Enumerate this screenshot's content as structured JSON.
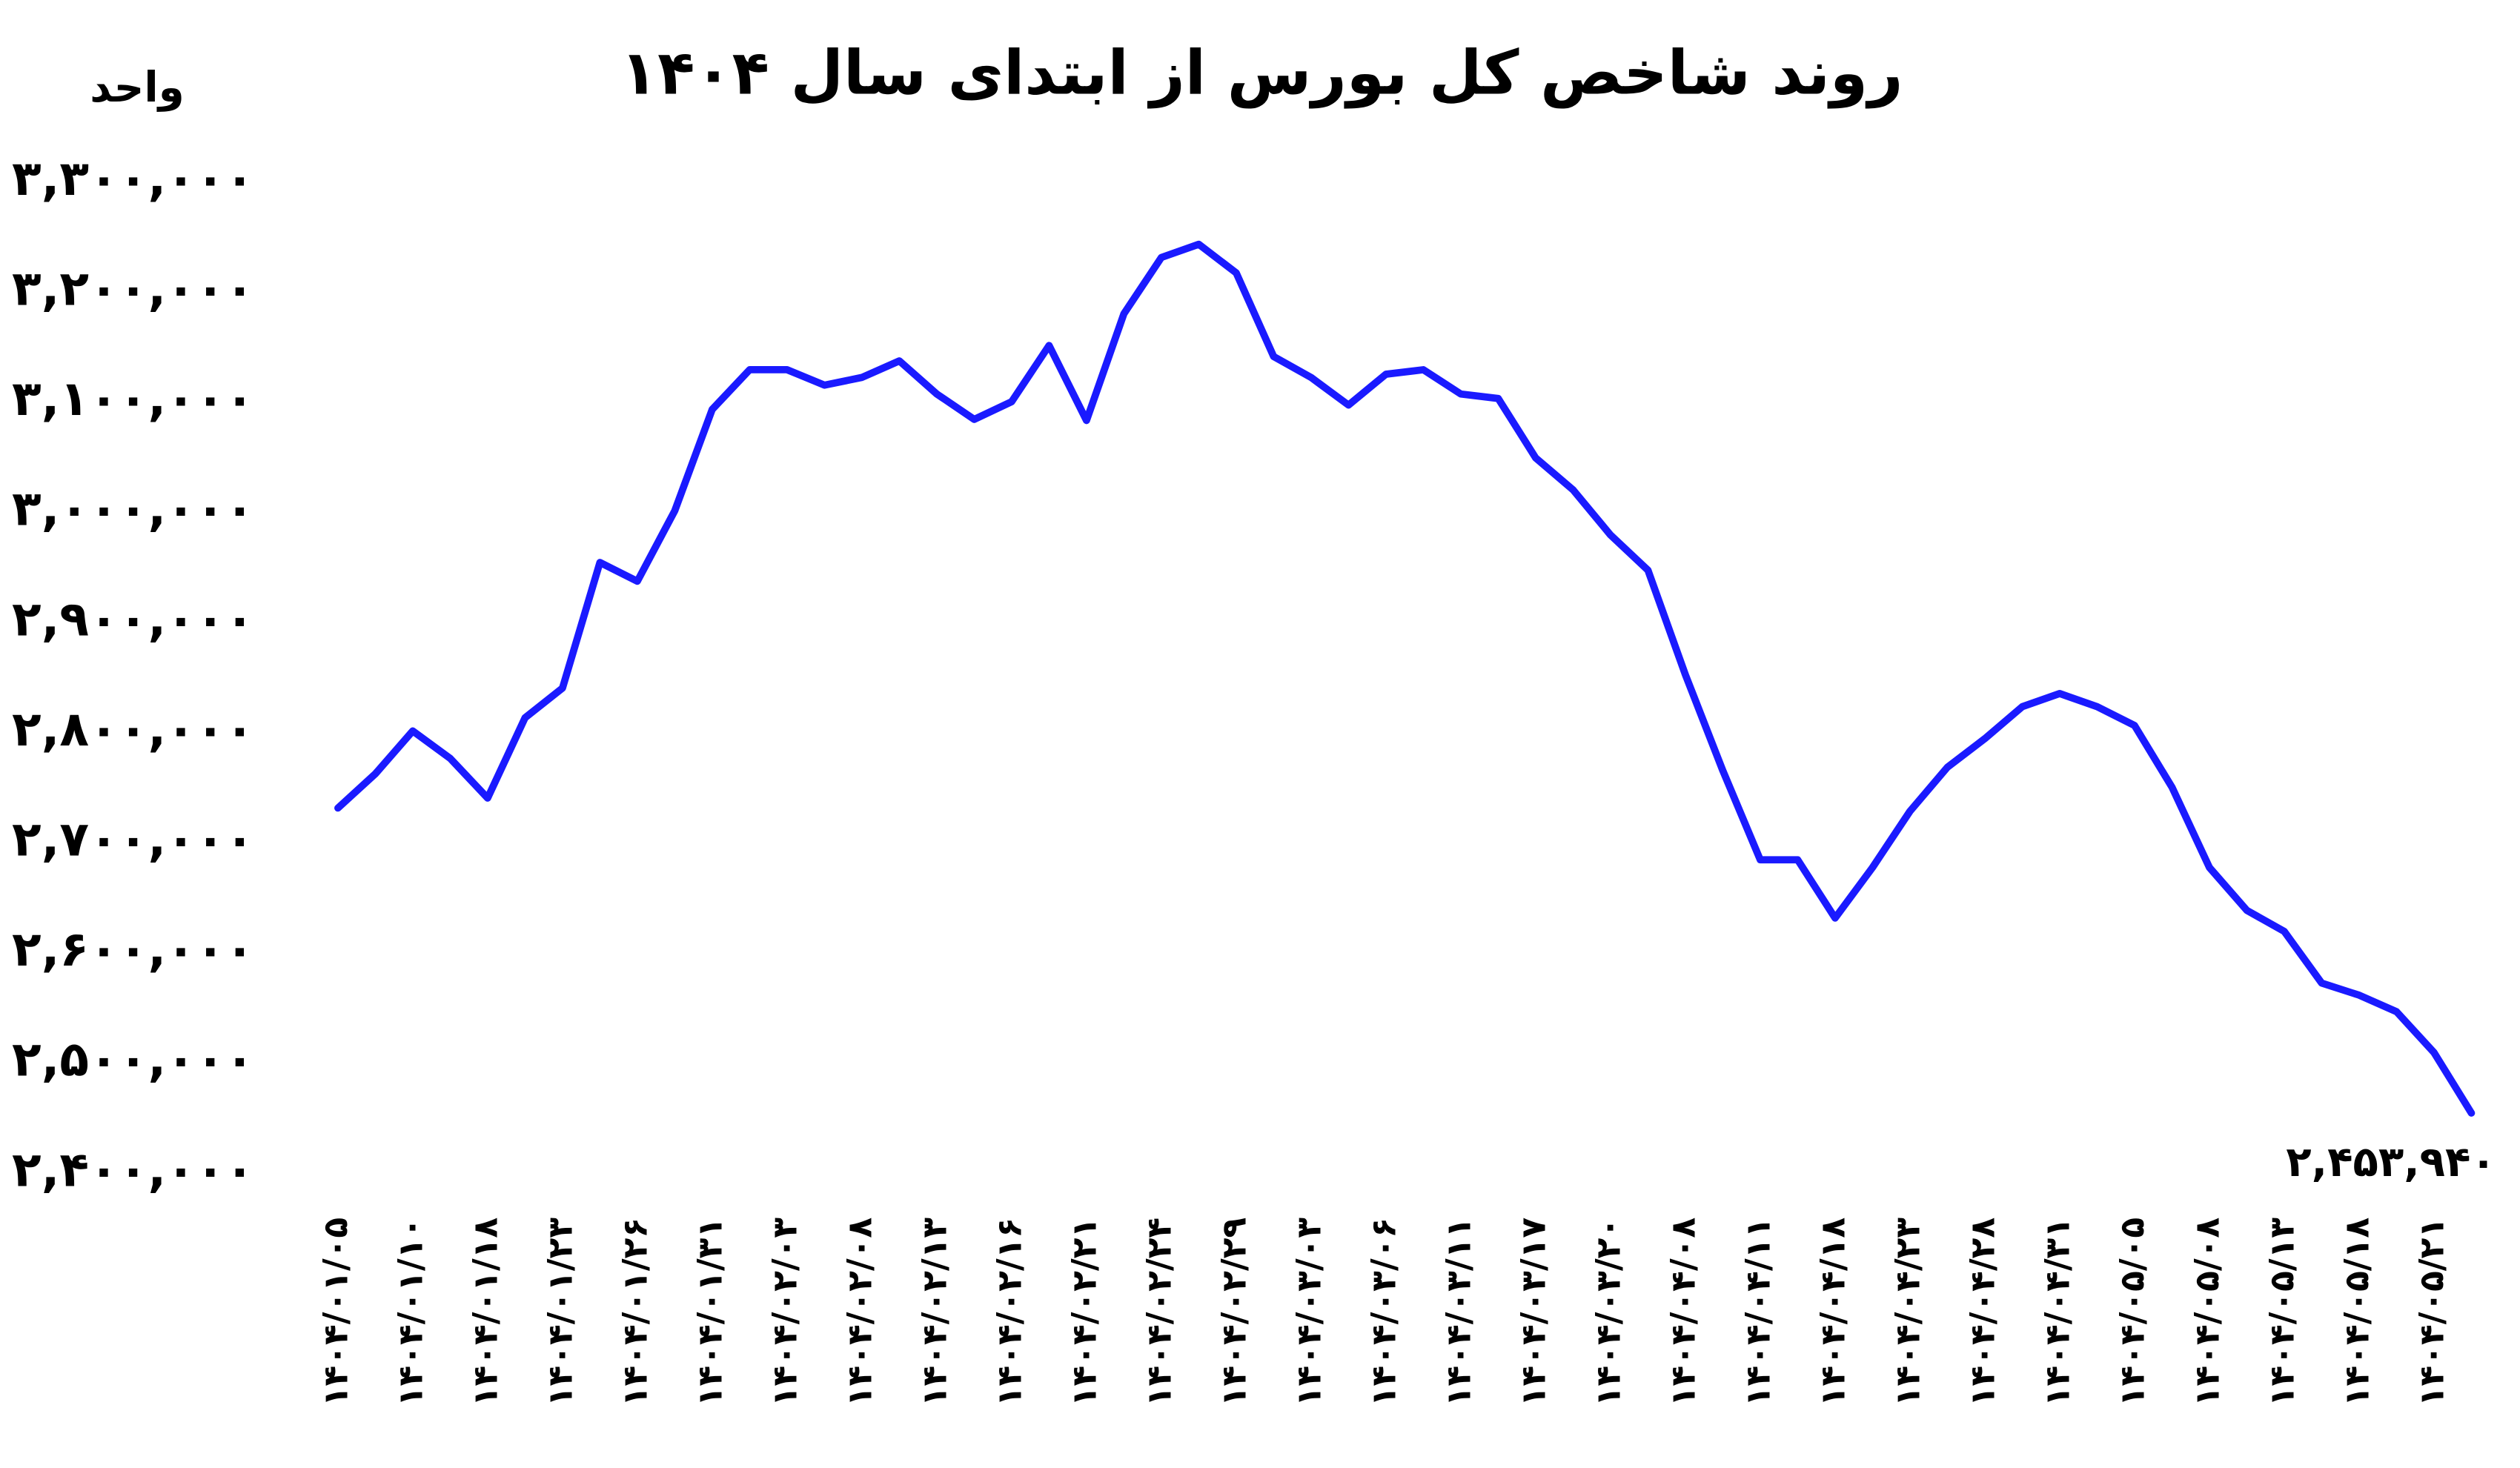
{
  "chart_data": {
    "type": "line",
    "title": "روند شاخص کل بورس از ابتدای سال ۱۴۰۴",
    "y_label": "واحد",
    "categories": [
      "۱۴۰۴/۰۱/۰۵",
      null,
      "۱۴۰۴/۰۱/۱۰",
      null,
      "۱۴۰۴/۰۱/۱۸",
      null,
      "۱۴۰۴/۰۱/۲۳",
      null,
      "۱۴۰۴/۰۱/۲۶",
      null,
      "۱۴۰۴/۰۱/۳۱",
      null,
      "۱۴۰۴/۰۲/۰۳",
      null,
      "۱۴۰۴/۰۲/۰۸",
      null,
      "۱۴۰۴/۰۲/۱۳",
      null,
      "۱۴۰۴/۰۲/۱۶",
      null,
      "۱۴۰۴/۰۲/۲۱",
      null,
      "۱۴۰۴/۰۲/۲۴",
      null,
      "۱۴۰۴/۰۲/۲۹",
      null,
      "۱۴۰۴/۰۳/۰۳",
      null,
      "۱۴۰۴/۰۳/۰۶",
      null,
      "۱۴۰۴/۰۳/۱۱",
      null,
      "۱۴۰۴/۰۳/۱۷",
      null,
      "۱۴۰۴/۰۳/۲۰",
      null,
      "۱۴۰۴/۰۴/۰۸",
      null,
      "۱۴۰۴/۰۴/۱۱",
      null,
      "۱۴۰۴/۰۴/۱۸",
      null,
      "۱۴۰۴/۰۴/۲۳",
      null,
      "۱۴۰۴/۰۴/۲۸",
      null,
      "۱۴۰۴/۰۴/۳۱",
      null,
      "۱۴۰۴/۰۵/۰۵",
      null,
      "۱۴۰۴/۰۵/۰۸",
      null,
      "۱۴۰۴/۰۵/۱۳",
      null,
      "۱۴۰۴/۰۵/۱۸",
      null,
      "۱۴۰۴/۰۵/۲۱",
      null
    ],
    "values": [
      2731000,
      2762000,
      2801000,
      2776000,
      2740000,
      2813000,
      2840000,
      2954000,
      2937000,
      3001000,
      3093000,
      3129000,
      3129000,
      3115000,
      3122000,
      3137000,
      3107000,
      3084000,
      3100000,
      3151000,
      3083000,
      3180000,
      3231000,
      3243000,
      3217000,
      3141000,
      3122000,
      3097000,
      3125000,
      3129000,
      3107000,
      3103000,
      3049000,
      3020000,
      2979000,
      2947000,
      2852000,
      2765000,
      2684000,
      2684000,
      2631000,
      2677000,
      2728000,
      2768000,
      2794000,
      2823000,
      2835000,
      2823000,
      2806000,
      2750000,
      2677000,
      2638000,
      2619000,
      2572000,
      2561000,
      2546000,
      2509000,
      2453940
    ],
    "value_labels": [
      null,
      null,
      null,
      null,
      null,
      null,
      null,
      null,
      null,
      null,
      null,
      null,
      null,
      null,
      null,
      null,
      null,
      null,
      null,
      null,
      null,
      null,
      null,
      null,
      null,
      null,
      null,
      null,
      null,
      null,
      null,
      null,
      null,
      null,
      null,
      null,
      null,
      null,
      null,
      null,
      null,
      null,
      null,
      null,
      null,
      null,
      null,
      null,
      null,
      null,
      null,
      null,
      null,
      null,
      null,
      null,
      null,
      "۲,۴۵۳,۹۴۰"
    ],
    "color": "#1a1aff",
    "ylim": [
      2400000,
      3300000
    ],
    "yticks": [
      {
        "value": 2400000,
        "label": "۲,۴۰۰,۰۰۰"
      },
      {
        "value": 2500000,
        "label": "۲,۵۰۰,۰۰۰"
      },
      {
        "value": 2600000,
        "label": "۲,۶۰۰,۰۰۰"
      },
      {
        "value": 2700000,
        "label": "۲,۷۰۰,۰۰۰"
      },
      {
        "value": 2800000,
        "label": "۲,۸۰۰,۰۰۰"
      },
      {
        "value": 2900000,
        "label": "۲,۹۰۰,۰۰۰"
      },
      {
        "value": 3000000,
        "label": "۳,۰۰۰,۰۰۰"
      },
      {
        "value": 3100000,
        "label": "۳,۱۰۰,۰۰۰"
      },
      {
        "value": 3200000,
        "label": "۳,۲۰۰,۰۰۰"
      },
      {
        "value": 3300000,
        "label": "۳,۳۰۰,۰۰۰"
      }
    ],
    "grid": false
  }
}
